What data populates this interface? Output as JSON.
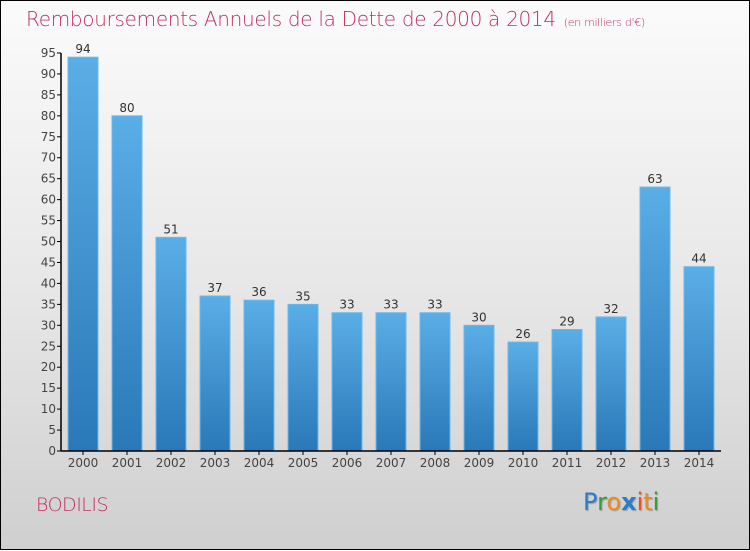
{
  "header": {
    "title": "Remboursements Annuels de la Dette de 2000 à 2014",
    "subtitle": "(en milliers d'€)"
  },
  "footer": {
    "city": "BODILIS",
    "logo": {
      "letters": [
        "P",
        "r",
        "o",
        "x",
        "i",
        "t",
        "i"
      ],
      "colors": [
        "#2a7ec8",
        "#3a9a3a",
        "#f08a1c",
        "#2a7ec8",
        "#e8501e",
        "#f08a1c",
        "#3a9a3a"
      ]
    }
  },
  "colors": {
    "title": "#c0305e",
    "bar_top": "#5aaee6",
    "bar_bottom": "#2a78b8"
  },
  "chart_data": {
    "type": "bar",
    "title": "Remboursements Annuels de la Dette de 2000 à 2014",
    "subtitle": "(en milliers d'€)",
    "xlabel": "",
    "ylabel": "",
    "categories": [
      "2000",
      "2001",
      "2002",
      "2003",
      "2004",
      "2005",
      "2006",
      "2007",
      "2008",
      "2009",
      "2010",
      "2011",
      "2012",
      "2013",
      "2014"
    ],
    "values": [
      94,
      80,
      51,
      37,
      36,
      35,
      33,
      33,
      33,
      30,
      26,
      29,
      32,
      63,
      44
    ],
    "ylim": [
      0,
      95
    ],
    "yticks": [
      0,
      5,
      10,
      15,
      20,
      25,
      30,
      35,
      40,
      45,
      50,
      55,
      60,
      65,
      70,
      75,
      80,
      85,
      90,
      95
    ],
    "grid": false,
    "legend": "none",
    "data_labels": true
  }
}
